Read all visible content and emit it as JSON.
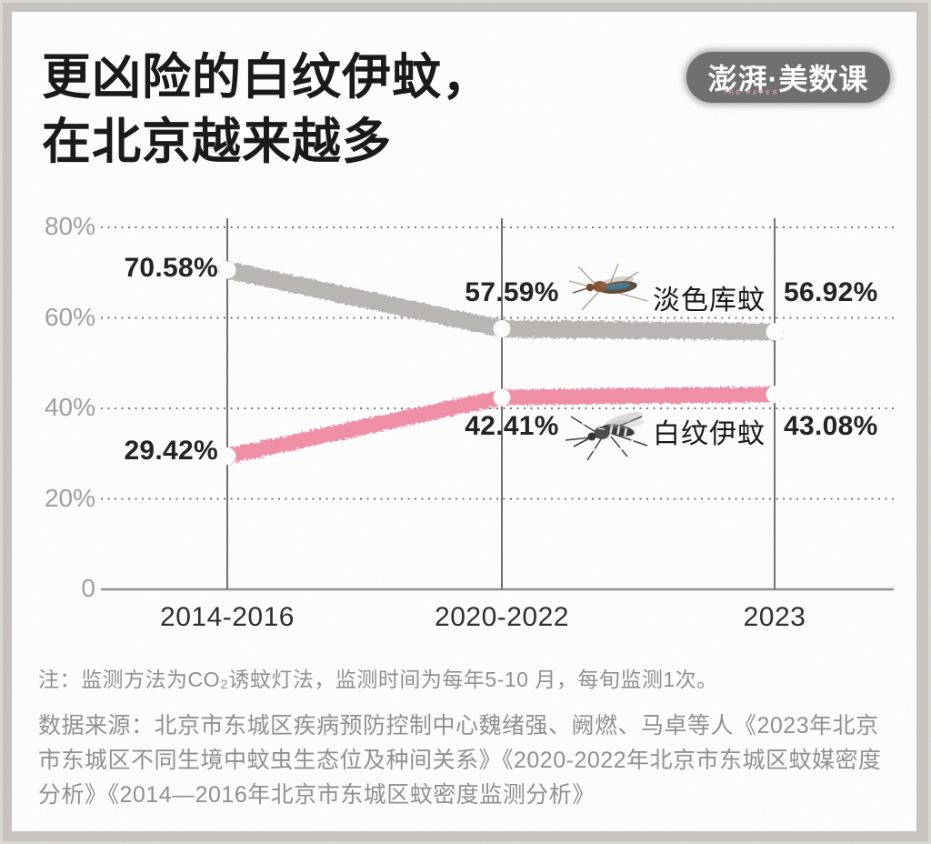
{
  "header": {
    "title_lines": [
      "更凶险的白纹伊蚊，",
      "在北京越来越多"
    ],
    "logo": {
      "text": "澎湃·美数课",
      "subtext": "THE PAPER"
    }
  },
  "chart_data": {
    "type": "line",
    "title": "更凶险的白纹伊蚊，在北京越来越多",
    "categories": [
      "2014-2016",
      "2020-2022",
      "2023"
    ],
    "series": [
      {
        "name": "淡色库蚊",
        "color": "#b9b6b3",
        "values": [
          70.58,
          57.59,
          56.92
        ],
        "point_labels": [
          "70.58%",
          "57.59%",
          "56.92%"
        ]
      },
      {
        "name": "白纹伊蚊",
        "color": "#f18ea6",
        "values": [
          29.42,
          42.41,
          43.08
        ],
        "point_labels": [
          "29.42%",
          "42.41%",
          "43.08%"
        ]
      }
    ],
    "y_ticks": [
      {
        "value": 80,
        "label": "80%"
      },
      {
        "value": 60,
        "label": "60%"
      },
      {
        "value": 40,
        "label": "40%"
      },
      {
        "value": 20,
        "label": "20%"
      },
      {
        "value": 0,
        "label": "0"
      }
    ],
    "ylim": [
      0,
      80
    ],
    "grid": "horizontal-dotted",
    "legend_position": "inline-right-of-lines"
  },
  "footer": {
    "note": "注：监测方法为CO₂诱蚊灯法，监测时间为每年5-10 月，每旬监测1次。",
    "source": "数据来源：北京市东城区疾病预防控制中心魏绪强、阙燃、马卓等人《2023年北京市东城区不同生境中蚊虫生态位及种间关系》《2020-2022年北京市东城区蚊媒密度分析》《2014—2016年北京市东城区蚊密度监测分析》"
  }
}
